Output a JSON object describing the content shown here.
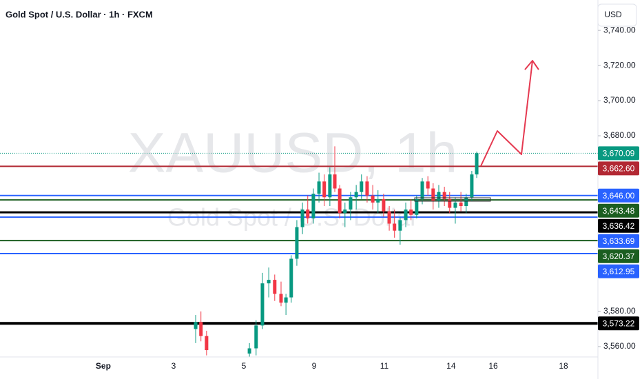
{
  "chart_data": {
    "type": "candlestick",
    "title": "Gold Spot / U.S. Dollar · 1h · FXCM",
    "currency_button": "USD",
    "watermark": "XAUUSD, 1h",
    "watermark_subtitle": "Gold Spot / U.S. Dollar",
    "x": [
      2.63,
      2.78,
      2.94,
      4.16,
      4.35,
      4.53,
      4.71,
      4.88,
      5.06,
      5.2,
      5.35,
      5.51,
      5.67,
      5.82,
      5.98,
      6.14,
      6.29,
      6.45,
      6.59,
      6.73,
      6.88,
      7.04,
      7.2,
      7.35,
      7.51,
      7.67,
      7.82,
      7.98,
      8.14,
      8.29,
      8.45,
      8.61,
      8.76,
      8.92,
      9.08,
      9.24,
      9.39,
      9.55,
      9.71,
      9.86,
      10.02,
      10.18,
      10.33,
      10.49,
      10.63
    ],
    "open": [
      3570,
      3574,
      3566,
      3556,
      3559,
      3572,
      3596,
      3598,
      3590,
      3585,
      3588,
      3610,
      3628,
      3638,
      3633,
      3647,
      3654,
      3645,
      3658,
      3650,
      3636,
      3638,
      3645,
      3648,
      3654,
      3646,
      3642,
      3644,
      3637,
      3630,
      3626,
      3632,
      3638,
      3635,
      3644,
      3654,
      3650,
      3643,
      3648,
      3644,
      3639,
      3642,
      3640,
      3645,
      3658
    ],
    "high": [
      3578,
      3580,
      3569,
      3562,
      3575,
      3602,
      3605,
      3601,
      3597,
      3590,
      3612,
      3632,
      3642,
      3646,
      3650,
      3659,
      3658,
      3662,
      3674,
      3652,
      3642,
      3648,
      3652,
      3658,
      3657,
      3652,
      3649,
      3647,
      3640,
      3638,
      3634,
      3642,
      3644,
      3646,
      3656,
      3657,
      3653,
      3652,
      3651,
      3648,
      3645,
      3648,
      3647,
      3660,
      3671
    ],
    "low": [
      3562,
      3563,
      3555,
      3550,
      3555,
      3570,
      3588,
      3586,
      3583,
      3578,
      3585,
      3606,
      3624,
      3630,
      3630,
      3642,
      3640,
      3640,
      3648,
      3633,
      3628,
      3632,
      3638,
      3644,
      3642,
      3638,
      3636,
      3634,
      3626,
      3622,
      3618,
      3628,
      3632,
      3633,
      3641,
      3646,
      3638,
      3639,
      3640,
      3636,
      3630,
      3637,
      3636,
      3643,
      3656
    ],
    "close": [
      3574,
      3566,
      3558,
      3559,
      3572,
      3596,
      3598,
      3590,
      3585,
      3588,
      3610,
      3628,
      3638,
      3633,
      3647,
      3654,
      3645,
      3658,
      3650,
      3636,
      3638,
      3645,
      3648,
      3654,
      3646,
      3642,
      3644,
      3637,
      3630,
      3626,
      3632,
      3638,
      3635,
      3644,
      3654,
      3650,
      3643,
      3648,
      3644,
      3639,
      3642,
      3640,
      3645,
      3658,
      3670.09
    ],
    "up_color": "#089981",
    "down_color": "#f23645",
    "xlim": [
      -2.94,
      14.08
    ],
    "xticks": [
      {
        "value": 0,
        "label": "Sep"
      },
      {
        "value": 2,
        "label": "3"
      },
      {
        "value": 4,
        "label": "5"
      },
      {
        "value": 6,
        "label": "9"
      },
      {
        "value": 8,
        "label": "11"
      },
      {
        "value": 9.9,
        "label": "14"
      },
      {
        "value": 11.1,
        "label": "16"
      },
      {
        "value": 13.1,
        "label": "18"
      }
    ],
    "ylim": [
      3554.1,
      3757.3
    ],
    "yticks": [
      {
        "value": 3740,
        "label": "3,740.00"
      },
      {
        "value": 3720,
        "label": "3,720.00"
      },
      {
        "value": 3700,
        "label": "3,700.00"
      },
      {
        "value": 3680,
        "label": "3,680.00"
      },
      {
        "value": 3580,
        "label": "3,580.00"
      },
      {
        "value": 3560,
        "label": "3,560.00"
      }
    ],
    "levels": [
      {
        "value": 3670.09,
        "label": "3,670.09",
        "color": "#089981",
        "style": "dotted",
        "width": 1
      },
      {
        "value": 3662.6,
        "label": "3,662.60",
        "color": "#b22833",
        "style": "solid",
        "width": 2
      },
      {
        "value": 3646.0,
        "label": "3,646.00",
        "color": "#2962ff",
        "style": "solid",
        "width": 2
      },
      {
        "value": 3643.48,
        "label": "3,643.48",
        "color": "#1b5e20",
        "style": "solid",
        "width": 2
      },
      {
        "value": 3636.42,
        "label": "3,636.42",
        "color": "#000000",
        "style": "solid",
        "width": 3
      },
      {
        "value": 3633.69,
        "label": "3,633.69",
        "color": "#2962ff",
        "style": "solid",
        "width": 2
      },
      {
        "value": 3620.37,
        "label": "3,620.37",
        "color": "#1b5e20",
        "style": "solid",
        "width": 2
      },
      {
        "value": 3612.95,
        "label": "3,612.95",
        "color": "#2962ff",
        "style": "solid",
        "width": 2
      },
      {
        "value": 3573.22,
        "label": "3,573.22",
        "color": "#000000",
        "style": "solid",
        "width": 4
      }
    ]
  }
}
